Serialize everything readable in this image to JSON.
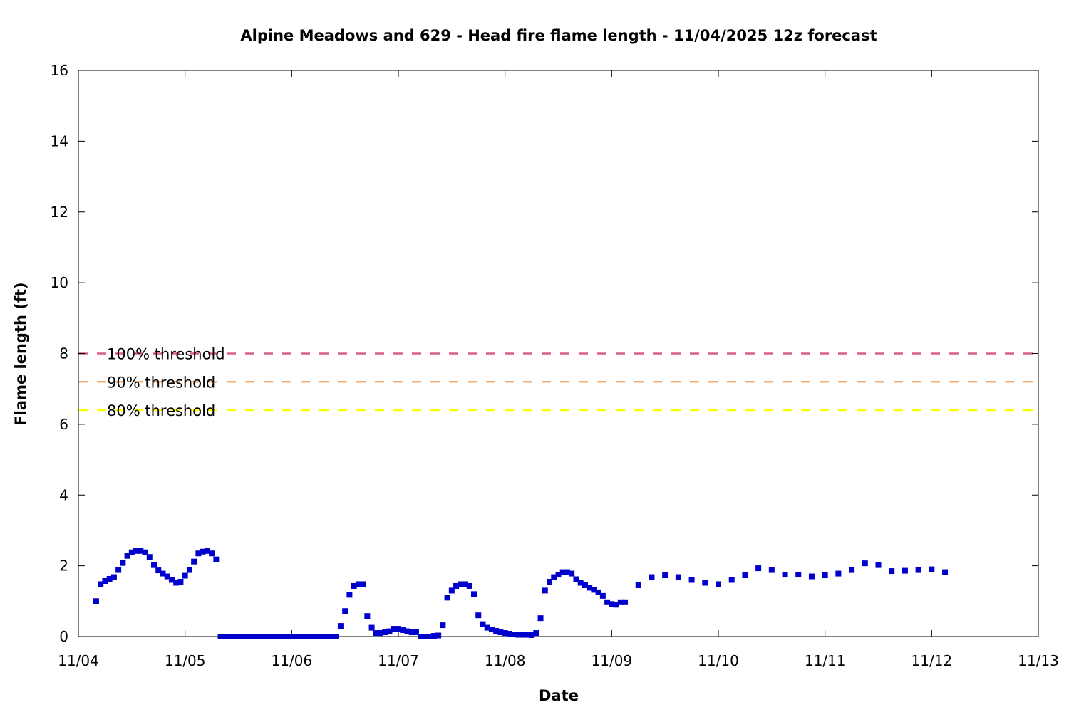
{
  "chart_data": {
    "type": "scatter",
    "title": "Alpine Meadows and 629 - Head fire flame length - 11/04/2025 12z forecast",
    "xlabel": "Date",
    "ylabel": "Flame length (ft)",
    "x_range": [
      "2025-11-04 00:00",
      "2025-11-13 00:00"
    ],
    "x_ticks": [
      "11/04",
      "11/05",
      "11/06",
      "11/07",
      "11/08",
      "11/09",
      "11/10",
      "11/11",
      "11/12",
      "11/13"
    ],
    "ylim": [
      0,
      16
    ],
    "y_ticks": [
      "0",
      "2",
      "4",
      "6",
      "8",
      "10",
      "12",
      "14",
      "16"
    ],
    "grid": false,
    "legend": "none",
    "thresholds": [
      {
        "name": "100% threshold",
        "value": 8.0,
        "color": "#d9607f"
      },
      {
        "name": "90% threshold",
        "value": 7.2,
        "color": "#f2b07a"
      },
      {
        "name": "80% threshold",
        "value": 6.4,
        "color": "#ffff00"
      }
    ],
    "series": [
      {
        "color": "#0000cc",
        "marker": "square",
        "points": [
          [
            "2025-11-04 04:00",
            1.0
          ],
          [
            "2025-11-04 05:00",
            1.48
          ],
          [
            "2025-11-04 06:00",
            1.57
          ],
          [
            "2025-11-04 07:00",
            1.63
          ],
          [
            "2025-11-04 08:00",
            1.68
          ],
          [
            "2025-11-04 09:00",
            1.88
          ],
          [
            "2025-11-04 10:00",
            2.08
          ],
          [
            "2025-11-04 11:00",
            2.28
          ],
          [
            "2025-11-04 12:00",
            2.38
          ],
          [
            "2025-11-04 13:00",
            2.42
          ],
          [
            "2025-11-04 14:00",
            2.42
          ],
          [
            "2025-11-04 15:00",
            2.38
          ],
          [
            "2025-11-04 16:00",
            2.25
          ],
          [
            "2025-11-04 17:00",
            2.02
          ],
          [
            "2025-11-04 18:00",
            1.87
          ],
          [
            "2025-11-04 19:00",
            1.78
          ],
          [
            "2025-11-04 20:00",
            1.7
          ],
          [
            "2025-11-04 21:00",
            1.6
          ],
          [
            "2025-11-04 22:00",
            1.52
          ],
          [
            "2025-11-04 23:00",
            1.55
          ],
          [
            "2025-11-05 00:00",
            1.72
          ],
          [
            "2025-11-05 01:00",
            1.88
          ],
          [
            "2025-11-05 02:00",
            2.12
          ],
          [
            "2025-11-05 03:00",
            2.35
          ],
          [
            "2025-11-05 04:00",
            2.4
          ],
          [
            "2025-11-05 05:00",
            2.42
          ],
          [
            "2025-11-05 06:00",
            2.35
          ],
          [
            "2025-11-05 07:00",
            2.18
          ],
          [
            "2025-11-05 08:00",
            0.0
          ],
          [
            "2025-11-05 09:00",
            0.0
          ],
          [
            "2025-11-05 10:00",
            0.0
          ],
          [
            "2025-11-05 11:00",
            0.0
          ],
          [
            "2025-11-05 12:00",
            0.0
          ],
          [
            "2025-11-05 13:00",
            0.0
          ],
          [
            "2025-11-05 14:00",
            0.0
          ],
          [
            "2025-11-05 15:00",
            0.0
          ],
          [
            "2025-11-05 16:00",
            0.0
          ],
          [
            "2025-11-05 17:00",
            0.0
          ],
          [
            "2025-11-05 18:00",
            0.0
          ],
          [
            "2025-11-05 19:00",
            0.0
          ],
          [
            "2025-11-05 20:00",
            0.0
          ],
          [
            "2025-11-05 21:00",
            0.0
          ],
          [
            "2025-11-05 22:00",
            0.0
          ],
          [
            "2025-11-05 23:00",
            0.0
          ],
          [
            "2025-11-06 00:00",
            0.0
          ],
          [
            "2025-11-06 01:00",
            0.0
          ],
          [
            "2025-11-06 02:00",
            0.0
          ],
          [
            "2025-11-06 03:00",
            0.0
          ],
          [
            "2025-11-06 04:00",
            0.0
          ],
          [
            "2025-11-06 05:00",
            0.0
          ],
          [
            "2025-11-06 06:00",
            0.0
          ],
          [
            "2025-11-06 07:00",
            0.0
          ],
          [
            "2025-11-06 08:00",
            0.0
          ],
          [
            "2025-11-06 09:00",
            0.0
          ],
          [
            "2025-11-06 10:00",
            0.0
          ],
          [
            "2025-11-06 11:00",
            0.3
          ],
          [
            "2025-11-06 12:00",
            0.72
          ],
          [
            "2025-11-06 13:00",
            1.18
          ],
          [
            "2025-11-06 14:00",
            1.43
          ],
          [
            "2025-11-06 15:00",
            1.48
          ],
          [
            "2025-11-06 16:00",
            1.48
          ],
          [
            "2025-11-06 17:00",
            0.58
          ],
          [
            "2025-11-06 18:00",
            0.25
          ],
          [
            "2025-11-06 19:00",
            0.1
          ],
          [
            "2025-11-06 20:00",
            0.1
          ],
          [
            "2025-11-06 21:00",
            0.12
          ],
          [
            "2025-11-06 22:00",
            0.15
          ],
          [
            "2025-11-06 23:00",
            0.22
          ],
          [
            "2025-11-07 00:00",
            0.22
          ],
          [
            "2025-11-07 01:00",
            0.18
          ],
          [
            "2025-11-07 02:00",
            0.15
          ],
          [
            "2025-11-07 03:00",
            0.12
          ],
          [
            "2025-11-07 04:00",
            0.12
          ],
          [
            "2025-11-07 05:00",
            0.0
          ],
          [
            "2025-11-07 06:00",
            0.0
          ],
          [
            "2025-11-07 07:00",
            0.0
          ],
          [
            "2025-11-07 08:00",
            0.02
          ],
          [
            "2025-11-07 09:00",
            0.03
          ],
          [
            "2025-11-07 10:00",
            0.32
          ],
          [
            "2025-11-07 11:00",
            1.1
          ],
          [
            "2025-11-07 12:00",
            1.3
          ],
          [
            "2025-11-07 13:00",
            1.43
          ],
          [
            "2025-11-07 14:00",
            1.48
          ],
          [
            "2025-11-07 15:00",
            1.48
          ],
          [
            "2025-11-07 16:00",
            1.43
          ],
          [
            "2025-11-07 17:00",
            1.2
          ],
          [
            "2025-11-07 18:00",
            0.6
          ],
          [
            "2025-11-07 19:00",
            0.35
          ],
          [
            "2025-11-07 20:00",
            0.25
          ],
          [
            "2025-11-07 21:00",
            0.2
          ],
          [
            "2025-11-07 22:00",
            0.16
          ],
          [
            "2025-11-07 23:00",
            0.12
          ],
          [
            "2025-11-08 00:00",
            0.1
          ],
          [
            "2025-11-08 01:00",
            0.08
          ],
          [
            "2025-11-08 02:00",
            0.06
          ],
          [
            "2025-11-08 03:00",
            0.05
          ],
          [
            "2025-11-08 04:00",
            0.05
          ],
          [
            "2025-11-08 05:00",
            0.05
          ],
          [
            "2025-11-08 06:00",
            0.04
          ],
          [
            "2025-11-08 07:00",
            0.1
          ],
          [
            "2025-11-08 08:00",
            0.52
          ],
          [
            "2025-11-08 09:00",
            1.3
          ],
          [
            "2025-11-08 10:00",
            1.55
          ],
          [
            "2025-11-08 11:00",
            1.68
          ],
          [
            "2025-11-08 12:00",
            1.75
          ],
          [
            "2025-11-08 13:00",
            1.82
          ],
          [
            "2025-11-08 14:00",
            1.82
          ],
          [
            "2025-11-08 15:00",
            1.78
          ],
          [
            "2025-11-08 16:00",
            1.62
          ],
          [
            "2025-11-08 17:00",
            1.52
          ],
          [
            "2025-11-08 18:00",
            1.45
          ],
          [
            "2025-11-08 19:00",
            1.38
          ],
          [
            "2025-11-08 20:00",
            1.32
          ],
          [
            "2025-11-08 21:00",
            1.25
          ],
          [
            "2025-11-08 22:00",
            1.15
          ],
          [
            "2025-11-08 23:00",
            0.97
          ],
          [
            "2025-11-09 00:00",
            0.92
          ],
          [
            "2025-11-09 01:00",
            0.9
          ],
          [
            "2025-11-09 02:00",
            0.97
          ],
          [
            "2025-11-09 03:00",
            0.97
          ],
          [
            "2025-11-09 06:00",
            1.45
          ],
          [
            "2025-11-09 09:00",
            1.68
          ],
          [
            "2025-11-09 12:00",
            1.73
          ],
          [
            "2025-11-09 15:00",
            1.68
          ],
          [
            "2025-11-09 18:00",
            1.6
          ],
          [
            "2025-11-09 21:00",
            1.52
          ],
          [
            "2025-11-10 00:00",
            1.48
          ],
          [
            "2025-11-10 03:00",
            1.6
          ],
          [
            "2025-11-10 06:00",
            1.73
          ],
          [
            "2025-11-10 09:00",
            1.93
          ],
          [
            "2025-11-10 12:00",
            1.88
          ],
          [
            "2025-11-10 15:00",
            1.75
          ],
          [
            "2025-11-10 18:00",
            1.75
          ],
          [
            "2025-11-10 21:00",
            1.7
          ],
          [
            "2025-11-11 00:00",
            1.73
          ],
          [
            "2025-11-11 03:00",
            1.78
          ],
          [
            "2025-11-11 06:00",
            1.88
          ],
          [
            "2025-11-11 09:00",
            2.07
          ],
          [
            "2025-11-11 12:00",
            2.02
          ],
          [
            "2025-11-11 15:00",
            1.85
          ],
          [
            "2025-11-11 18:00",
            1.86
          ],
          [
            "2025-11-11 21:00",
            1.88
          ],
          [
            "2025-11-12 00:00",
            1.9
          ],
          [
            "2025-11-12 03:00",
            1.82
          ]
        ]
      }
    ]
  }
}
